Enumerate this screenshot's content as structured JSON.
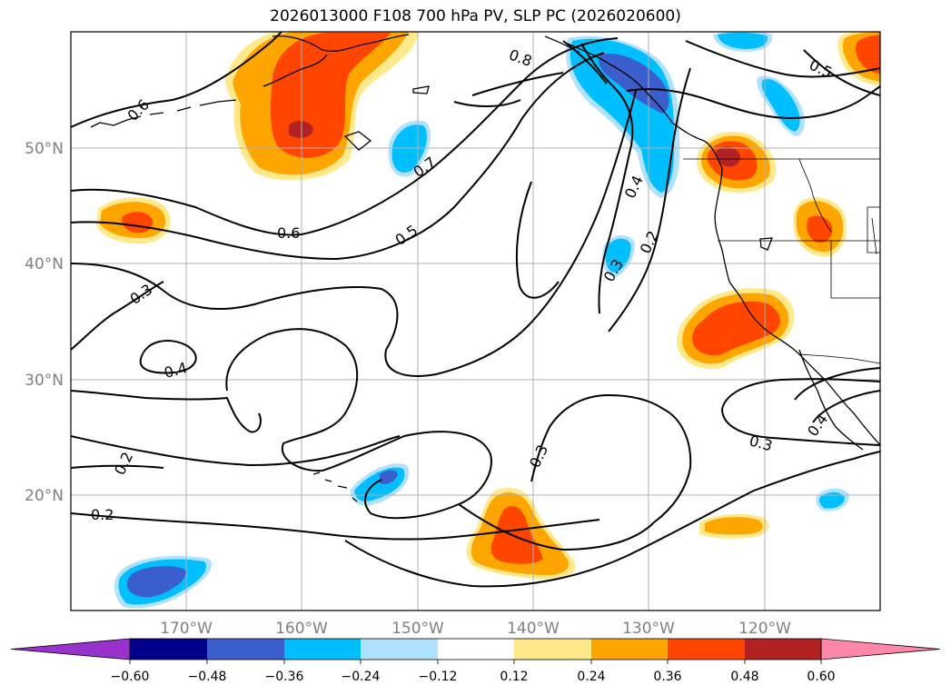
{
  "title": "2026013000 F108 700 hPa PV, SLP PC (2026020600)",
  "latitude_labels": [
    "50°N",
    "40°N",
    "30°N",
    "20°N"
  ],
  "longitude_labels": [
    "170°W",
    "160°W",
    "150°W",
    "140°W",
    "130°W",
    "120°W"
  ],
  "contour_labels": [
    "0.6",
    "0.8",
    "0.5",
    "0.7",
    "0.6",
    "0.5",
    "0.4",
    "0.2",
    "0.3",
    "0.3",
    "0.4",
    "0.2",
    "0.2",
    "0.3",
    "0.3",
    "0.4"
  ],
  "colorbar": {
    "tick_labels": [
      "−0.60",
      "−0.48",
      "−0.36",
      "−0.24",
      "−0.12",
      "0.12",
      "0.24",
      "0.36",
      "0.48",
      "0.60"
    ],
    "colors": [
      "#9932cc",
      "#00008b",
      "#3a5fcd",
      "#00bfff",
      "#b0e2ff",
      "#ffffff",
      "#ffe98a",
      "#ffa500",
      "#ff4500",
      "#b22222",
      "#ff88aa"
    ]
  }
}
